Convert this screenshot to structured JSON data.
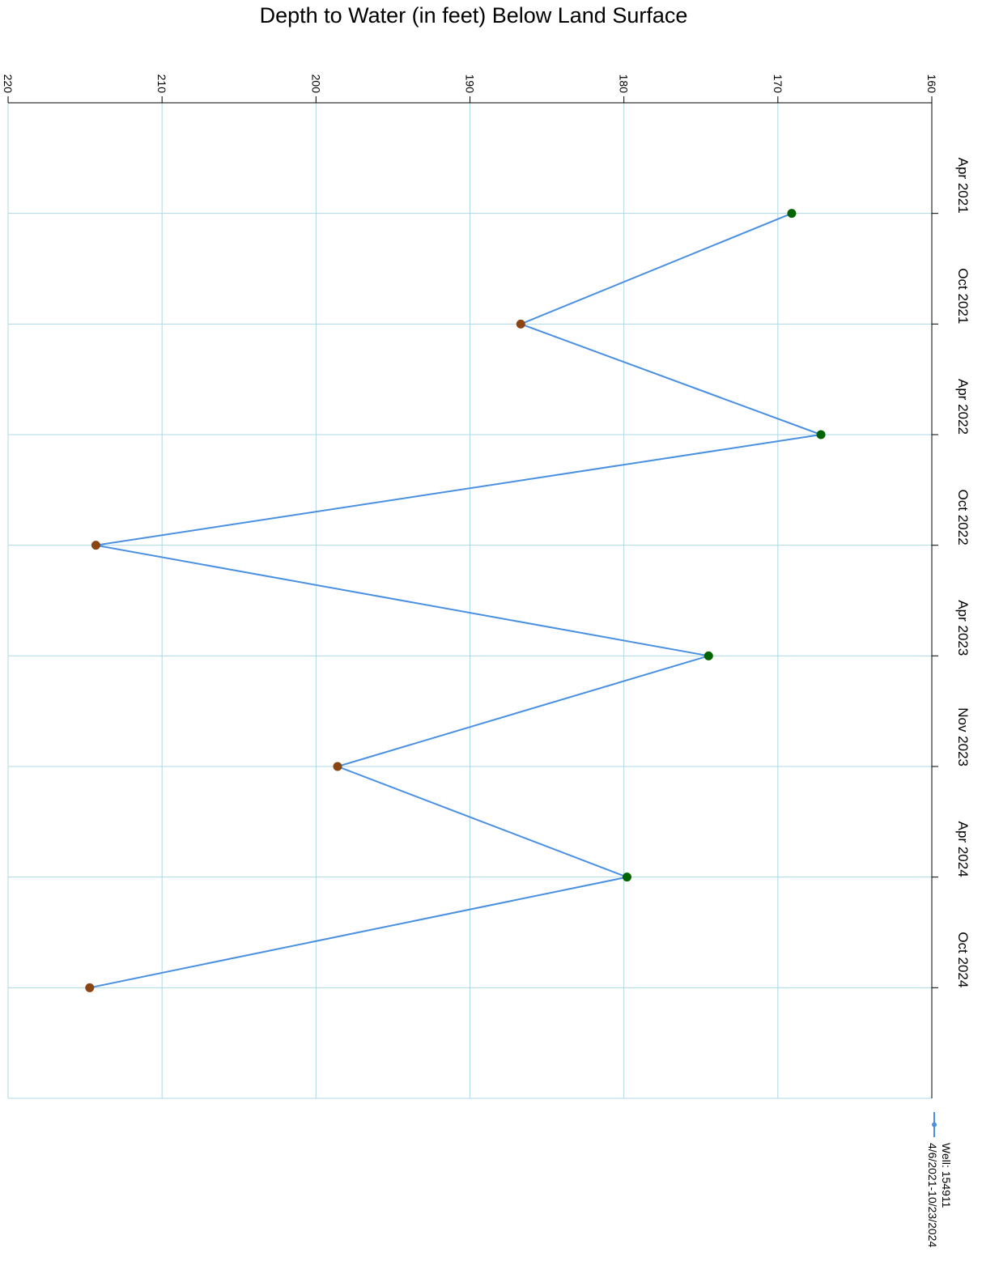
{
  "chart_data": {
    "type": "line",
    "title": "Depth to Water (in feet) Below Land Surface",
    "xlabel": "",
    "ylabel": "",
    "categories": [
      "Apr 2021",
      "Oct 2021",
      "Apr 2022",
      "Oct 2022",
      "Apr 2023",
      "Nov 2023",
      "Apr 2024",
      "Oct 2024"
    ],
    "yticks": [
      "220",
      "210",
      "200",
      "190",
      "180",
      "170",
      "160"
    ],
    "ylim": [
      160,
      220
    ],
    "y_reversed": true,
    "grid": true,
    "orientation": "rotated-90-clockwise",
    "series": [
      {
        "name": "Well: 154911",
        "legend_range": "4/6/2021-10/23/2024",
        "line_color": "#4a90e2",
        "values": [
          169.1,
          186.7,
          167.2,
          214.3,
          174.5,
          198.6,
          179.8,
          214.7
        ],
        "point_colors": [
          "#006400",
          "#8b4513",
          "#006400",
          "#8b4513",
          "#006400",
          "#8b4513",
          "#006400",
          "#8b4513"
        ]
      }
    ],
    "legend": {
      "position": "bottom"
    }
  }
}
